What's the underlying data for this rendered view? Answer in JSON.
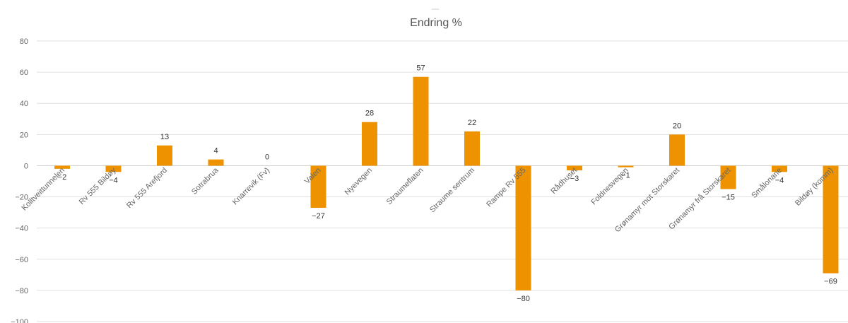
{
  "chart_data": {
    "type": "bar",
    "title": "Endring %",
    "categories": [
      "Kolltveittunnelen",
      "Rv 555 Bildøy",
      "Rv 555 Arefjord",
      "Sotrabrua",
      "Knarrevik (Fv)",
      "Valen",
      "Nyevegen",
      "Straumeflaten",
      "Straume sentrum",
      "Rampe Rv 555",
      "Rådhuset",
      "Foldnesvegen",
      "Grønamyr mot Storskaret",
      "Grønamyr frå Storskaret",
      "Smålonane",
      "Bildøy (komm)"
    ],
    "values": [
      -2,
      -4,
      13,
      4,
      0,
      -27,
      28,
      57,
      22,
      -80,
      -3,
      -1,
      20,
      -15,
      -4,
      -69
    ],
    "data_labels": [
      "−2",
      "−4",
      "13",
      "4",
      "0",
      "−27",
      "28",
      "57",
      "22",
      "−80",
      "−3",
      "−1",
      "20",
      "−15",
      "−4",
      "−69"
    ],
    "ylim": [
      -100,
      80
    ],
    "yticks": [
      80,
      60,
      40,
      20,
      0,
      -20,
      -40,
      -60,
      -80,
      -100
    ],
    "ytick_labels": [
      "80",
      "60",
      "40",
      "20",
      "0",
      "−20",
      "−40",
      "−60",
      "−80",
      "−100"
    ],
    "bar_color": "#EE9200",
    "grid": true,
    "legend": "none"
  }
}
